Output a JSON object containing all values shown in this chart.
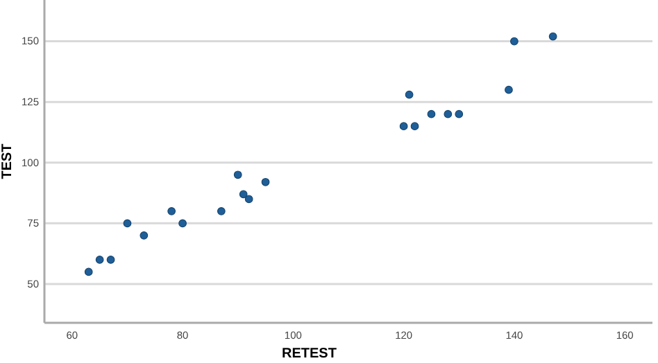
{
  "chart_data": {
    "type": "scatter",
    "xlabel": "RETEST",
    "ylabel": "TEST",
    "x": [
      63,
      65,
      67,
      70,
      73,
      78,
      80,
      87,
      90,
      91,
      92,
      95,
      120,
      121,
      122,
      125,
      128,
      130,
      139,
      140,
      147
    ],
    "series": [
      {
        "color": "#1f5f99",
        "values": [
          55,
          60,
          60,
          75,
          70,
          80,
          75,
          80,
          95,
          87,
          85,
          92,
          115,
          128,
          115,
          120,
          120,
          120,
          130,
          150,
          152
        ]
      }
    ],
    "xlim": [
      55,
      165
    ],
    "ylim": [
      34,
      167
    ],
    "xticks": [
      60,
      80,
      100,
      120,
      140,
      160
    ],
    "yticks": [
      50,
      75,
      100,
      125,
      150
    ],
    "grid": "y",
    "marker": "circle"
  }
}
